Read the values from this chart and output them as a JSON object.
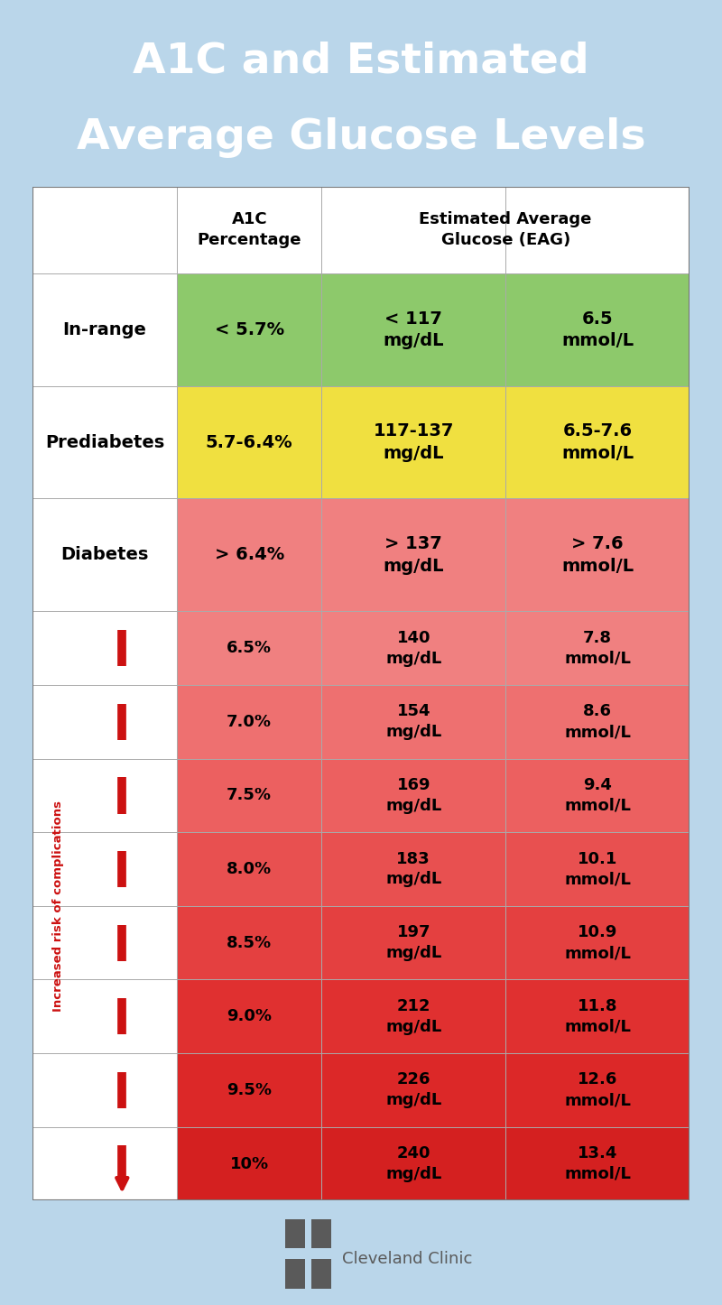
{
  "title_line1": "A1C and Estimated",
  "title_line2": "Average Glucose Levels",
  "title_bg": "#1a9cd8",
  "title_text_color": "#ffffff",
  "outer_bg": "#bad6ea",
  "table_bg": "#ffffff",
  "col_headers_col1": "A1C\nPercentage",
  "col_headers_col2": "Estimated Average\nGlucose (EAG)",
  "summary_rows": [
    {
      "label": "In-range",
      "a1c": "< 5.7%",
      "mgdl": "< 117\nmg/dL",
      "mmol": "6.5\nmmol/L",
      "data_bg": "#8dc96b"
    },
    {
      "label": "Prediabetes",
      "a1c": "5.7-6.4%",
      "mgdl": "117-137\nmg/dL",
      "mmol": "6.5-7.6\nmmol/L",
      "data_bg": "#f0e040"
    },
    {
      "label": "Diabetes",
      "a1c": "> 6.4%",
      "mgdl": "> 137\nmg/dL",
      "mmol": "> 7.6\nmmol/L",
      "data_bg": "#f08080"
    }
  ],
  "detail_rows": [
    {
      "a1c": "6.5%",
      "mgdl": "140\nmg/dL",
      "mmol": "7.8\nmmol/L",
      "bg": "#f08080"
    },
    {
      "a1c": "7.0%",
      "mgdl": "154\nmg/dL",
      "mmol": "8.6\nmmol/L",
      "bg": "#ee7070"
    },
    {
      "a1c": "7.5%",
      "mgdl": "169\nmg/dL",
      "mmol": "9.4\nmmol/L",
      "bg": "#ec6060"
    },
    {
      "a1c": "8.0%",
      "mgdl": "183\nmg/dL",
      "mmol": "10.1\nmmol/L",
      "bg": "#e85050"
    },
    {
      "a1c": "8.5%",
      "mgdl": "197\nmg/dL",
      "mmol": "10.9\nmmol/L",
      "bg": "#e44040"
    },
    {
      "a1c": "9.0%",
      "mgdl": "212\nmg/dL",
      "mmol": "11.8\nmmol/L",
      "bg": "#e03030"
    },
    {
      "a1c": "9.5%",
      "mgdl": "226\nmg/dL",
      "mmol": "12.6\nmmol/L",
      "bg": "#dc2828"
    },
    {
      "a1c": "10%",
      "mgdl": "240\nmg/dL",
      "mmol": "13.4\nmmol/L",
      "bg": "#d42020"
    }
  ],
  "arrow_color": "#cc1111",
  "arrow_label": "Increased risk of complications",
  "cc_color": "#5a5a5a",
  "cc_text": "Cleveland Clinic",
  "border_color": "#999999",
  "grid_color": "#aaaaaa"
}
